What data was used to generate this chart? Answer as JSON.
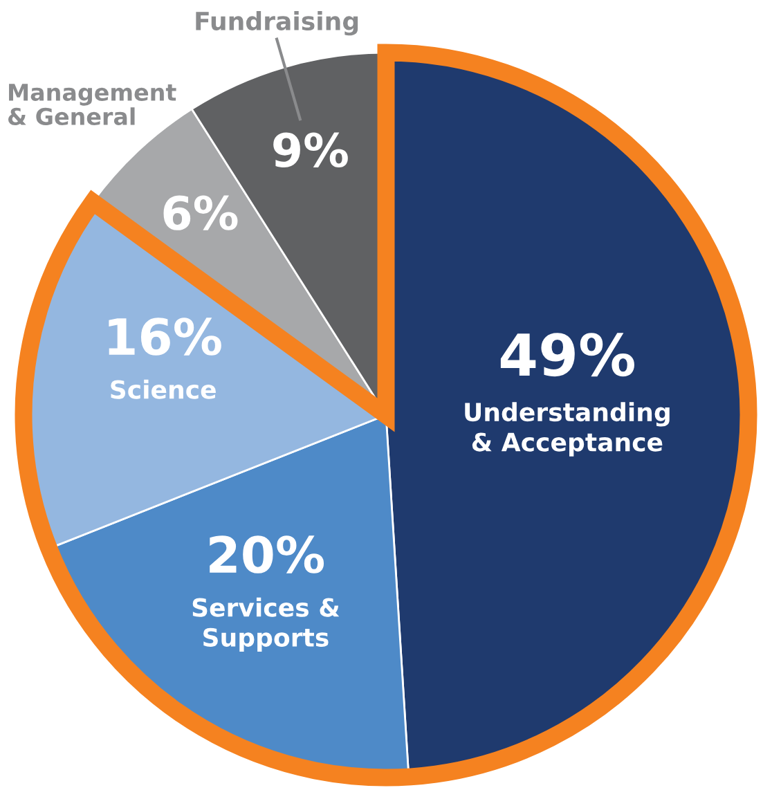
{
  "chart_data": {
    "type": "pie",
    "categories": [
      "Understanding\n& Acceptance",
      "Services &\nSupports",
      "Science",
      "Management\n& General",
      "Fundraising"
    ],
    "values": [
      49,
      20,
      16,
      6,
      9
    ],
    "colors": [
      "#1f3a6e",
      "#4e8ac8",
      "#94b7e0",
      "#a7a8aa",
      "#606163"
    ],
    "value_labels": [
      "49%",
      "20%",
      "16%",
      "6%",
      "9%"
    ]
  }
}
